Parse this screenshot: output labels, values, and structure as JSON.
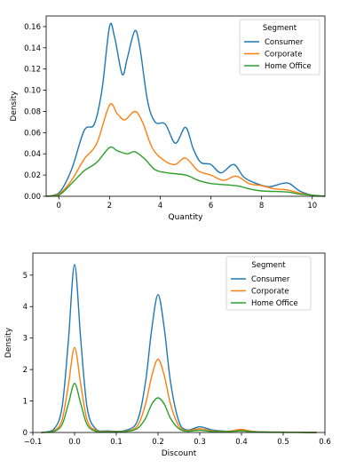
{
  "colors": {
    "consumer": "#1f77b4",
    "corporate": "#ff7f0e",
    "home_office": "#2ca02c",
    "axes": "#000000",
    "legend_border": "#cccccc"
  },
  "chart_data": [
    {
      "type": "line",
      "subtype": "kde-density",
      "xlabel": "Quantity",
      "ylabel": "Density",
      "xlim": [
        -0.5,
        10.5
      ],
      "ylim": [
        0,
        0.17
      ],
      "xticks": [
        0,
        2,
        4,
        6,
        8,
        10
      ],
      "yticks": [
        0.0,
        0.02,
        0.04,
        0.06,
        0.08,
        0.1,
        0.12,
        0.14,
        0.16
      ],
      "ytick_labels": [
        "0.00",
        "0.02",
        "0.04",
        "0.06",
        "0.08",
        "0.10",
        "0.12",
        "0.14",
        "0.16"
      ],
      "xtick_labels": [
        "0",
        "2",
        "4",
        "6",
        "8",
        "10"
      ],
      "legend": {
        "title": "Segment",
        "placement": "top-right"
      },
      "grid": false,
      "series": [
        {
          "name": "Consumer",
          "color_key": "consumer",
          "points": [
            [
              -0.5,
              0
            ],
            [
              0,
              0.003
            ],
            [
              0.5,
              0.025
            ],
            [
              1,
              0.062
            ],
            [
              1.4,
              0.068
            ],
            [
              1.7,
              0.1
            ],
            [
              2,
              0.16
            ],
            [
              2.2,
              0.15
            ],
            [
              2.5,
              0.115
            ],
            [
              2.7,
              0.13
            ],
            [
              3,
              0.156
            ],
            [
              3.2,
              0.14
            ],
            [
              3.5,
              0.09
            ],
            [
              3.8,
              0.07
            ],
            [
              4.2,
              0.068
            ],
            [
              4.6,
              0.05
            ],
            [
              5,
              0.065
            ],
            [
              5.3,
              0.045
            ],
            [
              5.6,
              0.032
            ],
            [
              6,
              0.03
            ],
            [
              6.4,
              0.022
            ],
            [
              6.9,
              0.03
            ],
            [
              7.3,
              0.018
            ],
            [
              7.8,
              0.012
            ],
            [
              8.3,
              0.009
            ],
            [
              8.8,
              0.012
            ],
            [
              9.1,
              0.012
            ],
            [
              9.5,
              0.005
            ],
            [
              10,
              0.001
            ],
            [
              10.5,
              0
            ]
          ]
        },
        {
          "name": "Corporate",
          "color_key": "corporate",
          "points": [
            [
              -0.5,
              0
            ],
            [
              0,
              0.002
            ],
            [
              0.5,
              0.015
            ],
            [
              1,
              0.035
            ],
            [
              1.5,
              0.05
            ],
            [
              2,
              0.086
            ],
            [
              2.3,
              0.078
            ],
            [
              2.6,
              0.072
            ],
            [
              3,
              0.08
            ],
            [
              3.3,
              0.07
            ],
            [
              3.7,
              0.045
            ],
            [
              4.2,
              0.033
            ],
            [
              4.6,
              0.03
            ],
            [
              5,
              0.036
            ],
            [
              5.5,
              0.024
            ],
            [
              6,
              0.02
            ],
            [
              6.5,
              0.015
            ],
            [
              7,
              0.019
            ],
            [
              7.5,
              0.012
            ],
            [
              8,
              0.01
            ],
            [
              8.5,
              0.007
            ],
            [
              9,
              0.006
            ],
            [
              9.5,
              0.003
            ],
            [
              10,
              0.001
            ],
            [
              10.5,
              0
            ]
          ]
        },
        {
          "name": "Home Office",
          "color_key": "home_office",
          "points": [
            [
              -0.5,
              0
            ],
            [
              0,
              0.001
            ],
            [
              0.5,
              0.012
            ],
            [
              1,
              0.024
            ],
            [
              1.5,
              0.032
            ],
            [
              2,
              0.046
            ],
            [
              2.3,
              0.043
            ],
            [
              2.7,
              0.04
            ],
            [
              3,
              0.042
            ],
            [
              3.4,
              0.035
            ],
            [
              3.8,
              0.025
            ],
            [
              4.3,
              0.022
            ],
            [
              5,
              0.02
            ],
            [
              5.5,
              0.015
            ],
            [
              6,
              0.012
            ],
            [
              7,
              0.01
            ],
            [
              7.5,
              0.007
            ],
            [
              8,
              0.005
            ],
            [
              9,
              0.004
            ],
            [
              9.5,
              0.002
            ],
            [
              10,
              0.001
            ],
            [
              10.5,
              0
            ]
          ]
        }
      ]
    },
    {
      "type": "line",
      "subtype": "kde-density",
      "xlabel": "Discount",
      "ylabel": "Density",
      "xlim": [
        -0.1,
        0.6
      ],
      "ylim": [
        0,
        5.7
      ],
      "xticks": [
        -0.1,
        0.0,
        0.1,
        0.2,
        0.3,
        0.4,
        0.5,
        0.6
      ],
      "xtick_labels": [
        "−0.1",
        "0.0",
        "0.1",
        "0.2",
        "0.3",
        "0.4",
        "0.5",
        "0.6"
      ],
      "yticks": [
        0,
        1,
        2,
        3,
        4,
        5
      ],
      "ytick_labels": [
        "0",
        "1",
        "2",
        "3",
        "4",
        "5"
      ],
      "legend": {
        "title": "Segment",
        "placement": "top-right"
      },
      "grid": false,
      "series": [
        {
          "name": "Consumer",
          "color_key": "consumer",
          "points": [
            [
              -0.08,
              0
            ],
            [
              -0.05,
              0.1
            ],
            [
              -0.03,
              0.8
            ],
            [
              -0.015,
              2.9
            ],
            [
              0,
              5.33
            ],
            [
              0.015,
              2.9
            ],
            [
              0.03,
              0.8
            ],
            [
              0.05,
              0.12
            ],
            [
              0.08,
              0.05
            ],
            [
              0.12,
              0.06
            ],
            [
              0.15,
              0.35
            ],
            [
              0.17,
              1.6
            ],
            [
              0.185,
              3.3
            ],
            [
              0.2,
              4.38
            ],
            [
              0.215,
              3.3
            ],
            [
              0.23,
              1.6
            ],
            [
              0.25,
              0.35
            ],
            [
              0.27,
              0.08
            ],
            [
              0.3,
              0.18
            ],
            [
              0.33,
              0.08
            ],
            [
              0.37,
              0.04
            ],
            [
              0.4,
              0.08
            ],
            [
              0.43,
              0.03
            ],
            [
              0.5,
              0.01
            ],
            [
              0.55,
              0.003
            ],
            [
              0.58,
              0
            ]
          ]
        },
        {
          "name": "Corporate",
          "color_key": "corporate",
          "points": [
            [
              -0.08,
              0
            ],
            [
              -0.05,
              0.05
            ],
            [
              -0.03,
              0.4
            ],
            [
              -0.015,
              1.5
            ],
            [
              0,
              2.7
            ],
            [
              0.015,
              1.5
            ],
            [
              0.03,
              0.4
            ],
            [
              0.05,
              0.07
            ],
            [
              0.08,
              0.03
            ],
            [
              0.12,
              0.04
            ],
            [
              0.15,
              0.2
            ],
            [
              0.17,
              0.9
            ],
            [
              0.185,
              1.8
            ],
            [
              0.2,
              2.33
            ],
            [
              0.215,
              1.8
            ],
            [
              0.23,
              0.9
            ],
            [
              0.25,
              0.2
            ],
            [
              0.27,
              0.06
            ],
            [
              0.3,
              0.12
            ],
            [
              0.33,
              0.05
            ],
            [
              0.37,
              0.04
            ],
            [
              0.4,
              0.1
            ],
            [
              0.43,
              0.03
            ],
            [
              0.5,
              0.01
            ],
            [
              0.55,
              0.003
            ],
            [
              0.58,
              0
            ]
          ]
        },
        {
          "name": "Home Office",
          "color_key": "home_office",
          "points": [
            [
              -0.08,
              0
            ],
            [
              -0.05,
              0.03
            ],
            [
              -0.03,
              0.25
            ],
            [
              -0.015,
              0.9
            ],
            [
              0,
              1.56
            ],
            [
              0.015,
              0.9
            ],
            [
              0.03,
              0.25
            ],
            [
              0.05,
              0.04
            ],
            [
              0.08,
              0.02
            ],
            [
              0.12,
              0.03
            ],
            [
              0.15,
              0.12
            ],
            [
              0.17,
              0.45
            ],
            [
              0.185,
              0.9
            ],
            [
              0.2,
              1.1
            ],
            [
              0.215,
              0.9
            ],
            [
              0.23,
              0.45
            ],
            [
              0.25,
              0.12
            ],
            [
              0.27,
              0.04
            ],
            [
              0.3,
              0.07
            ],
            [
              0.33,
              0.03
            ],
            [
              0.37,
              0.03
            ],
            [
              0.4,
              0.05
            ],
            [
              0.43,
              0.02
            ],
            [
              0.5,
              0.005
            ],
            [
              0.55,
              0.002
            ],
            [
              0.58,
              0
            ]
          ]
        }
      ]
    }
  ]
}
